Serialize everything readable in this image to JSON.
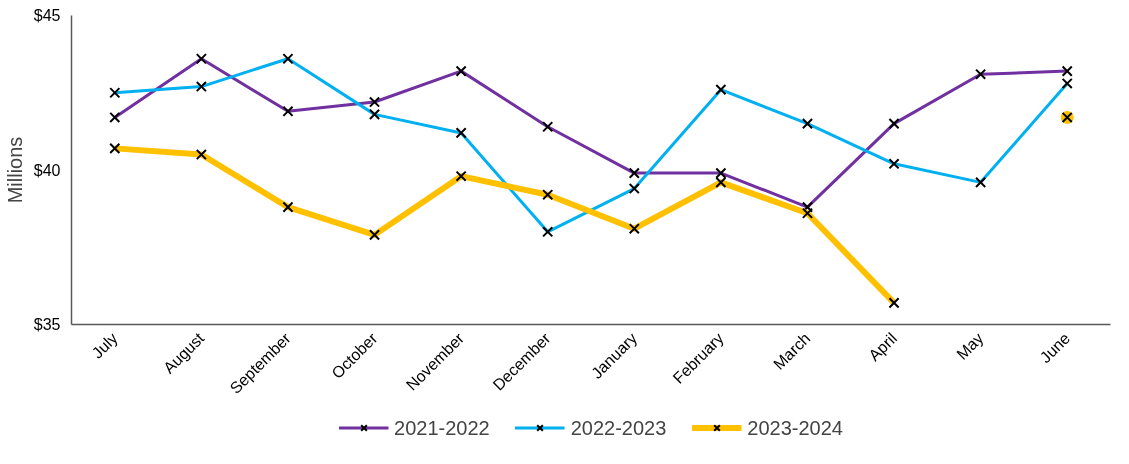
{
  "chart_data": {
    "type": "line",
    "ylabel": "Millions",
    "categories": [
      "July",
      "August",
      "September",
      "October",
      "November",
      "December",
      "January",
      "February",
      "March",
      "April",
      "May",
      "June"
    ],
    "ylim": [
      35,
      45
    ],
    "yticks": [
      {
        "value": 35,
        "label": "$35"
      },
      {
        "value": 40,
        "label": "$40"
      },
      {
        "value": 45,
        "label": "$45"
      }
    ],
    "grid": false,
    "legend": "bottom",
    "marker": "cross",
    "line_style": "solid",
    "series": [
      {
        "name": "2021-2022",
        "color": "#7030a0",
        "values": [
          41.7,
          43.6,
          41.9,
          42.2,
          43.2,
          41.4,
          39.9,
          39.9,
          38.8,
          41.5,
          43.1,
          43.2
        ]
      },
      {
        "name": "2022-2023",
        "color": "#00b0f0",
        "values": [
          42.5,
          42.7,
          43.6,
          41.8,
          41.2,
          38.0,
          39.4,
          42.6,
          41.5,
          40.2,
          39.6,
          42.8
        ]
      },
      {
        "name": "2023-2024",
        "color": "#ffc000",
        "values": [
          40.7,
          40.5,
          38.8,
          37.9,
          39.8,
          39.2,
          38.1,
          39.6,
          38.6,
          35.7,
          null,
          41.7
        ]
      }
    ]
  }
}
